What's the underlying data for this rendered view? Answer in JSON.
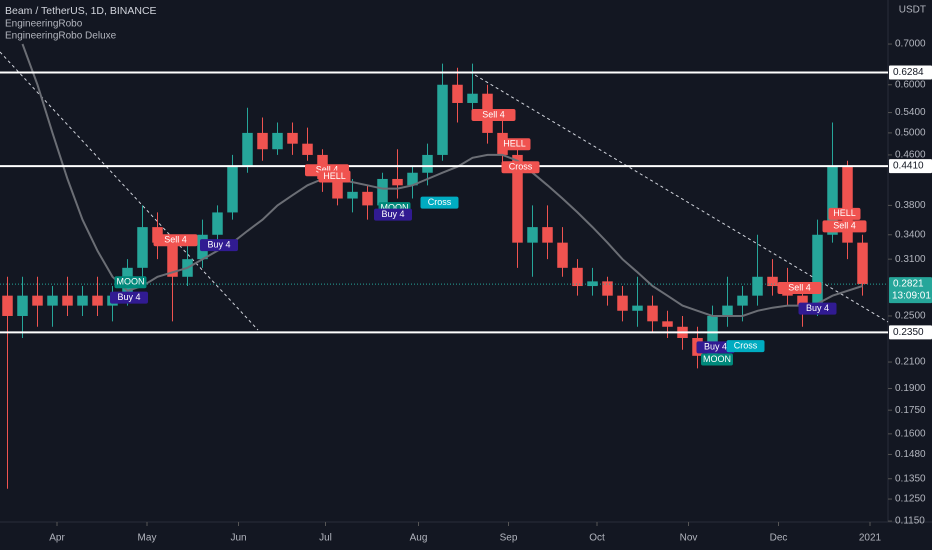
{
  "chart_data": {
    "type": "candlestick",
    "title": "Beam / TetherUS, 1D, BINANCE",
    "indicators": [
      "EngineeringRobo",
      "EngineeringRobo Deluxe"
    ],
    "currency": "USDT",
    "log_scale": true,
    "grid": false,
    "up_color": "#26a69a",
    "down_color": "#ef5350",
    "ma_color": "#6b6e75",
    "open": [
      0.27,
      0.25,
      0.27,
      0.26,
      0.27,
      0.26,
      0.27,
      0.26,
      0.27,
      0.3,
      0.35,
      0.33,
      0.29,
      0.31,
      0.34,
      0.37,
      0.44,
      0.5,
      0.47,
      0.5,
      0.48,
      0.46,
      0.42,
      0.39,
      0.4,
      0.38,
      0.42,
      0.41,
      0.43,
      0.46,
      0.6,
      0.56,
      0.58,
      0.5,
      0.46,
      0.33,
      0.35,
      0.33,
      0.3,
      0.28,
      0.285,
      0.27,
      0.255,
      0.26,
      0.245,
      0.24,
      0.23,
      0.215,
      0.25,
      0.26,
      0.27,
      0.29,
      0.28,
      0.27,
      0.26,
      0.34,
      0.44,
      0.33
    ],
    "high": [
      0.29,
      0.29,
      0.29,
      0.28,
      0.29,
      0.28,
      0.29,
      0.28,
      0.31,
      0.38,
      0.37,
      0.34,
      0.33,
      0.36,
      0.38,
      0.46,
      0.55,
      0.53,
      0.52,
      0.52,
      0.51,
      0.47,
      0.44,
      0.42,
      0.41,
      0.43,
      0.47,
      0.44,
      0.48,
      0.65,
      0.64,
      0.65,
      0.6,
      0.53,
      0.48,
      0.38,
      0.38,
      0.35,
      0.31,
      0.3,
      0.29,
      0.28,
      0.29,
      0.27,
      0.255,
      0.25,
      0.24,
      0.26,
      0.29,
      0.28,
      0.34,
      0.31,
      0.3,
      0.28,
      0.36,
      0.52,
      0.45,
      0.34
    ],
    "low": [
      0.13,
      0.23,
      0.24,
      0.24,
      0.25,
      0.25,
      0.25,
      0.245,
      0.26,
      0.29,
      0.31,
      0.245,
      0.28,
      0.3,
      0.32,
      0.36,
      0.43,
      0.45,
      0.46,
      0.46,
      0.45,
      0.4,
      0.38,
      0.37,
      0.36,
      0.37,
      0.39,
      0.39,
      0.41,
      0.45,
      0.52,
      0.53,
      0.48,
      0.44,
      0.3,
      0.29,
      0.31,
      0.29,
      0.27,
      0.27,
      0.26,
      0.245,
      0.24,
      0.235,
      0.23,
      0.22,
      0.205,
      0.21,
      0.24,
      0.245,
      0.26,
      0.27,
      0.26,
      0.24,
      0.25,
      0.33,
      0.31,
      0.27
    ],
    "close": [
      0.25,
      0.27,
      0.26,
      0.27,
      0.26,
      0.27,
      0.26,
      0.27,
      0.3,
      0.35,
      0.33,
      0.29,
      0.31,
      0.34,
      0.37,
      0.44,
      0.5,
      0.47,
      0.5,
      0.48,
      0.46,
      0.42,
      0.39,
      0.4,
      0.38,
      0.42,
      0.41,
      0.43,
      0.46,
      0.6,
      0.56,
      0.58,
      0.5,
      0.46,
      0.33,
      0.35,
      0.33,
      0.3,
      0.28,
      0.285,
      0.27,
      0.255,
      0.26,
      0.245,
      0.24,
      0.23,
      0.215,
      0.25,
      0.26,
      0.27,
      0.29,
      0.28,
      0.27,
      0.26,
      0.34,
      0.44,
      0.33,
      0.2821
    ],
    "moving_average": [
      null,
      0.7,
      0.6,
      0.5,
      0.42,
      0.36,
      0.32,
      0.29,
      0.275,
      0.28,
      0.29,
      0.295,
      0.3,
      0.31,
      0.32,
      0.33,
      0.345,
      0.36,
      0.38,
      0.395,
      0.41,
      0.42,
      0.42,
      0.415,
      0.41,
      0.405,
      0.405,
      0.41,
      0.42,
      0.43,
      0.44,
      0.455,
      0.46,
      0.46,
      0.45,
      0.43,
      0.41,
      0.39,
      0.37,
      0.35,
      0.33,
      0.31,
      0.295,
      0.28,
      0.27,
      0.26,
      0.255,
      0.25,
      0.25,
      0.25,
      0.255,
      0.258,
      0.26,
      0.26,
      0.262,
      0.27,
      0.275,
      0.28
    ],
    "xlim": [
      0,
      59.2
    ],
    "xticks": [
      {
        "value": 3.8,
        "label": "Apr"
      },
      {
        "value": 9.8,
        "label": "May"
      },
      {
        "value": 15.9,
        "label": "Jun"
      },
      {
        "value": 21.7,
        "label": "Jul"
      },
      {
        "value": 27.9,
        "label": "Aug"
      },
      {
        "value": 33.9,
        "label": "Sep"
      },
      {
        "value": 39.8,
        "label": "Oct"
      },
      {
        "value": 45.9,
        "label": "Nov"
      },
      {
        "value": 51.9,
        "label": "Dec"
      },
      {
        "value": 58.0,
        "label": "2021"
      }
    ],
    "ylim": [
      0.1146,
      0.827
    ],
    "yticks": [
      {
        "value": 0.7,
        "label": "0.7000"
      },
      {
        "value": 0.6,
        "label": "0.6000"
      },
      {
        "value": 0.54,
        "label": "0.5400"
      },
      {
        "value": 0.5,
        "label": "0.5000"
      },
      {
        "value": 0.46,
        "label": "0.4600"
      },
      {
        "value": 0.38,
        "label": "0.3800"
      },
      {
        "value": 0.34,
        "label": "0.3400"
      },
      {
        "value": 0.31,
        "label": "0.3100"
      },
      {
        "value": 0.25,
        "label": "0.2500"
      },
      {
        "value": 0.21,
        "label": "0.2100"
      },
      {
        "value": 0.19,
        "label": "0.1900"
      },
      {
        "value": 0.175,
        "label": "0.1750"
      },
      {
        "value": 0.16,
        "label": "0.1600"
      },
      {
        "value": 0.148,
        "label": "0.1480"
      },
      {
        "value": 0.135,
        "label": "0.1350"
      },
      {
        "value": 0.125,
        "label": "0.1250"
      },
      {
        "value": 0.115,
        "label": "0.1150"
      }
    ],
    "levels": [
      {
        "value": 0.6284,
        "label": "0.6284"
      },
      {
        "value": 0.441,
        "label": "0.4410"
      },
      {
        "value": 0.235,
        "label": "0.2350"
      }
    ],
    "last_price": {
      "value": 0.2821,
      "label": "0.2821"
    },
    "countdown": "13:09:01",
    "annotations": [
      {
        "text": "MOON",
        "x": 8.7,
        "y": 0.284,
        "color": "#00897b"
      },
      {
        "text": "Buy 4",
        "x": 8.6,
        "y": 0.268,
        "color": "#311b92"
      },
      {
        "text": "Sell 4",
        "x": 11.7,
        "y": 0.333,
        "color": "#f05350"
      },
      {
        "text": "Buy 4",
        "x": 14.6,
        "y": 0.327,
        "color": "#311b92"
      },
      {
        "text": "Sell 4",
        "x": 21.8,
        "y": 0.434,
        "color": "#f05350"
      },
      {
        "text": "HELL",
        "x": 22.3,
        "y": 0.424,
        "color": "#f05350"
      },
      {
        "text": "MOON",
        "x": 26.3,
        "y": 0.376,
        "color": "#00897b"
      },
      {
        "text": "Buy 4",
        "x": 26.2,
        "y": 0.367,
        "color": "#311b92"
      },
      {
        "text": "Cross",
        "x": 29.3,
        "y": 0.384,
        "color": "#00acc1"
      },
      {
        "text": "Sell 4",
        "x": 32.9,
        "y": 0.535,
        "color": "#f05350"
      },
      {
        "text": "HELL",
        "x": 34.3,
        "y": 0.479,
        "color": "#f05350"
      },
      {
        "text": "Cross",
        "x": 34.7,
        "y": 0.439,
        "color": "#f05350"
      },
      {
        "text": "Buy 4",
        "x": 47.7,
        "y": 0.222,
        "color": "#311b92"
      },
      {
        "text": "MOON",
        "x": 47.8,
        "y": 0.212,
        "color": "#00897b"
      },
      {
        "text": "Cross",
        "x": 49.7,
        "y": 0.223,
        "color": "#00acc1"
      },
      {
        "text": "Sell 4",
        "x": 53.3,
        "y": 0.278,
        "color": "#f05350"
      },
      {
        "text": "Buy 4",
        "x": 54.5,
        "y": 0.257,
        "color": "#311b92"
      },
      {
        "text": "HELL",
        "x": 56.3,
        "y": 0.368,
        "color": "#f05350"
      },
      {
        "text": "Sell 4",
        "x": 56.3,
        "y": 0.351,
        "color": "#f05350"
      }
    ]
  }
}
